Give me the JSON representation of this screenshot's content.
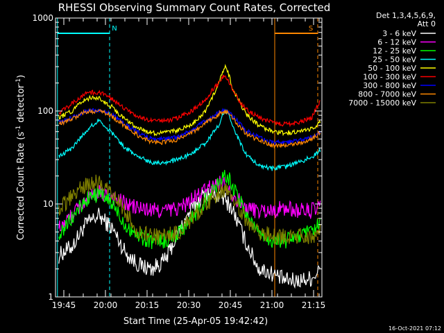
{
  "chart_data": {
    "type": "line",
    "title": "RHESSI Observing Summary Count Rates, Corrected",
    "xlabel": "Start Time (25-Apr-05 19:42:42)",
    "ylabel": "Corrected Count Rate (s",
    "ylabel_sup1": "-1",
    "ylabel_mid": " detector",
    "ylabel_sup2": "-1",
    "ylabel_end": ")",
    "footer_date": "16-Oct-2021 07:12",
    "legend_title": [
      "Det 1,3,4,5,6,9,",
      "Att 0"
    ],
    "y_scale": "log",
    "ylim": [
      1,
      1000
    ],
    "xlim_minutes": [
      19.7,
      21.3
    ],
    "x_ticks": [
      "19:45",
      "20:00",
      "20:15",
      "20:30",
      "20:45",
      "21:00",
      "21:15"
    ],
    "y_ticks": [
      "1",
      "10",
      "100",
      "1000"
    ],
    "markers": [
      {
        "label": "N",
        "color": "#00ffff",
        "start": "19:42:42",
        "end": "20:01:30"
      },
      {
        "label": "S",
        "color": "#ff8800",
        "start": "21:01:00",
        "end": "21:16:30"
      }
    ],
    "x_hours": [
      19.72,
      19.8,
      19.88,
      19.96,
      20.04,
      20.12,
      20.2,
      20.28,
      20.36,
      20.44,
      20.52,
      20.6,
      20.68,
      20.7,
      20.72,
      20.74,
      20.76,
      20.84,
      20.92,
      21.0,
      21.08,
      21.16,
      21.24,
      21.29
    ],
    "series": [
      {
        "name": "3 - 6 keV",
        "color": "#ffffff",
        "values": [
          2.8,
          3.5,
          6.0,
          7.5,
          5.5,
          3.0,
          2.2,
          2.0,
          2.5,
          5.0,
          9.0,
          13,
          12,
          12,
          11,
          10,
          9,
          4.0,
          2.0,
          1.8,
          1.5,
          1.5,
          1.6,
          2.0
        ]
      },
      {
        "name": "6 - 12 keV",
        "color": "#ff00ff",
        "values": [
          5.5,
          7.5,
          11,
          13,
          12,
          10,
          9.0,
          8.5,
          8.5,
          9.0,
          11,
          14,
          17,
          17,
          16,
          15,
          13,
          9.0,
          8.5,
          8.5,
          9.0,
          8.5,
          8.5,
          9.0
        ]
      },
      {
        "name": "12 - 25 keV",
        "color": "#00ff00",
        "values": [
          4.5,
          7.0,
          11,
          13,
          10,
          6.0,
          4.5,
          4.0,
          4.0,
          5.0,
          7.0,
          11,
          17,
          20,
          21,
          19,
          16,
          8.0,
          5.0,
          4.0,
          4.0,
          4.5,
          5.0,
          6.0
        ]
      },
      {
        "name": "25 - 50 keV",
        "color": "#00ffff",
        "values": [
          32,
          40,
          60,
          80,
          58,
          40,
          32,
          28,
          28,
          30,
          35,
          45,
          70,
          90,
          98,
          90,
          70,
          35,
          26,
          24,
          25,
          28,
          32,
          38
        ]
      },
      {
        "name": "50 - 100 keV",
        "color": "#ffff00",
        "values": [
          85,
          100,
          135,
          140,
          110,
          80,
          65,
          58,
          58,
          62,
          72,
          100,
          190,
          260,
          300,
          250,
          180,
          95,
          70,
          60,
          58,
          60,
          65,
          75
        ]
      },
      {
        "name": "100 - 300 keV",
        "color": "#ff0000",
        "values": [
          95,
          120,
          155,
          160,
          135,
          105,
          85,
          78,
          78,
          85,
          100,
          135,
          200,
          230,
          235,
          210,
          170,
          105,
          85,
          75,
          72,
          75,
          85,
          130
        ]
      },
      {
        "name": "300 - 800 keV",
        "color": "#0000ff",
        "values": [
          75,
          85,
          100,
          102,
          92,
          72,
          58,
          50,
          50,
          53,
          62,
          78,
          95,
          100,
          100,
          98,
          90,
          62,
          52,
          46,
          46,
          48,
          52,
          60
        ]
      },
      {
        "name": "800 - 7000 keV",
        "color": "#ff8800",
        "values": [
          72,
          82,
          98,
          100,
          88,
          68,
          54,
          46,
          46,
          50,
          58,
          74,
          92,
          98,
          98,
          95,
          86,
          58,
          48,
          43,
          43,
          45,
          50,
          58
        ]
      },
      {
        "name": "7000 - 15000 keV",
        "color": "#808000",
        "values": [
          9.0,
          12,
          16,
          17,
          13,
          8.0,
          5.0,
          4.5,
          4.5,
          5.0,
          7.0,
          10,
          13,
          14,
          14,
          13,
          12,
          7.0,
          5.0,
          4.5,
          4.5,
          4.5,
          4.5,
          5.0
        ]
      }
    ]
  }
}
